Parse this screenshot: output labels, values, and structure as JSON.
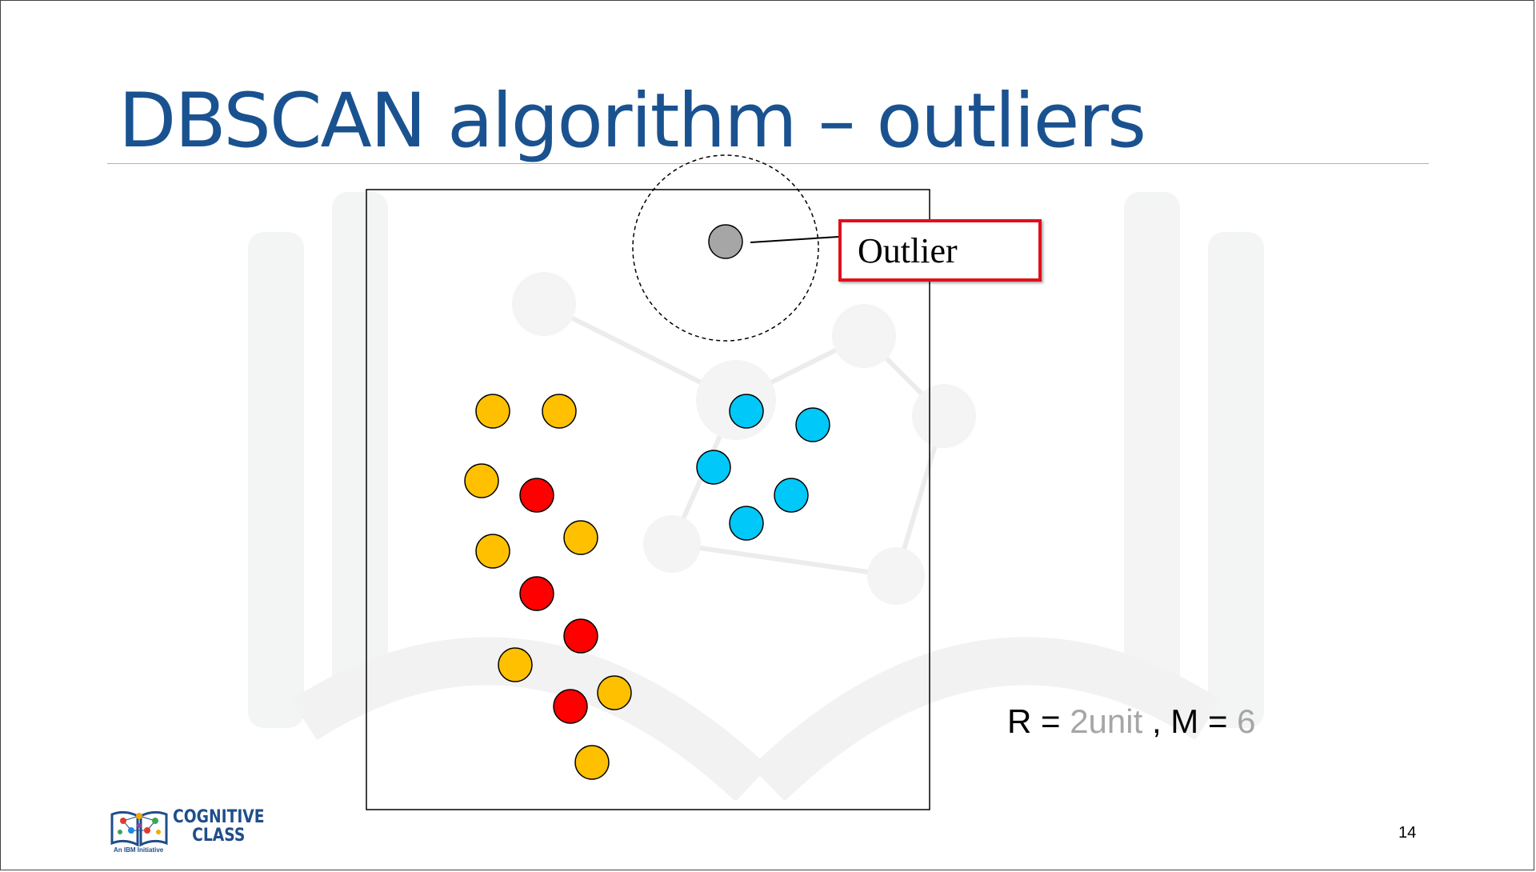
{
  "slide": {
    "title": "DBSCAN algorithm – outliers",
    "page_number": "14"
  },
  "diagram": {
    "outlier_label": "Outlier",
    "params": {
      "r_label": "R = ",
      "r_value": "2unit",
      "sep": " , ",
      "m_label": "M = ",
      "m_value": "6"
    },
    "colors": {
      "core": "#ff0000",
      "border": "#ffc000",
      "cluster2": "#00c8f8",
      "outlier": "#a6a6a6",
      "callout_border": "#e0101c"
    }
  },
  "logo": {
    "line1": "COGNITIVE",
    "line2": "CLASS",
    "subtitle": "An IBM Initiative",
    "icon": "book-network-icon"
  }
}
